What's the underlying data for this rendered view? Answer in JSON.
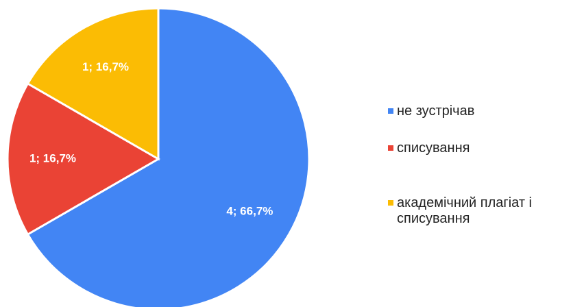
{
  "chart_data": {
    "type": "pie",
    "categories": [
      "не зустрічав",
      "списування",
      "академічний плагіат і списування"
    ],
    "values": [
      4,
      1,
      1
    ],
    "value_labels": [
      "4; 66,7%",
      "1; 16,7%",
      "1; 16,7%"
    ],
    "colors": [
      "#4285f4",
      "#ea4335",
      "#fbbc04"
    ],
    "legend": "right"
  }
}
